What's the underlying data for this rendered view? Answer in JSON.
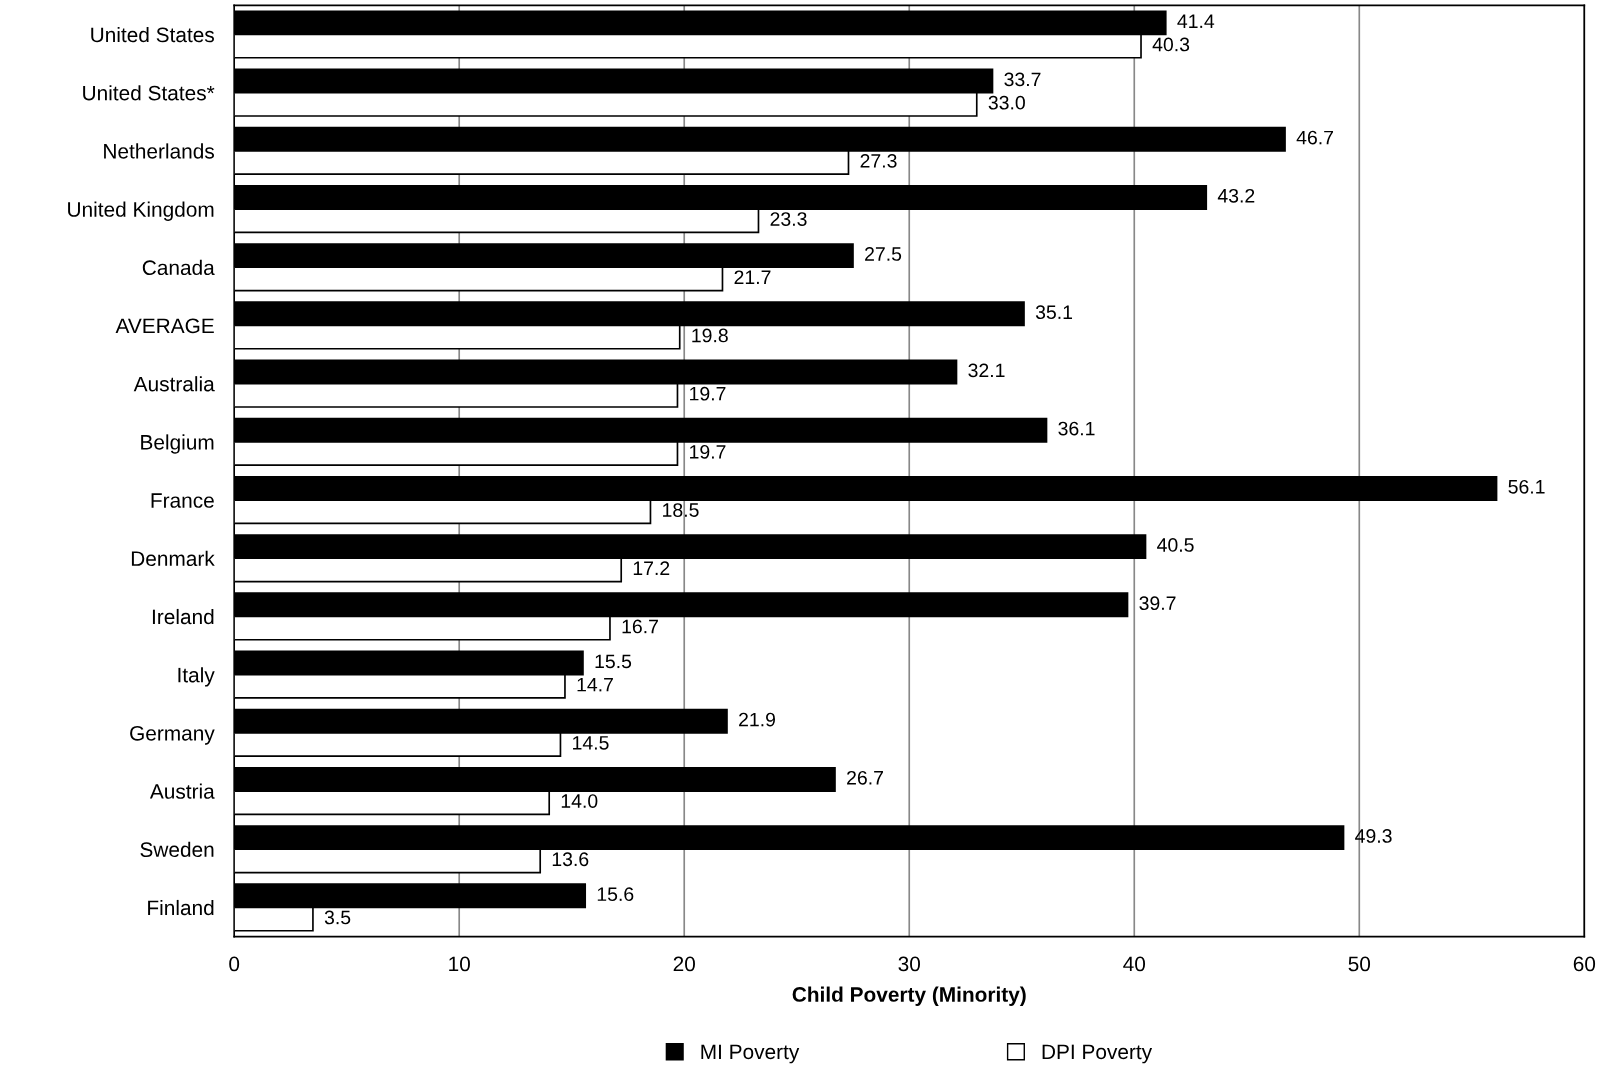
{
  "chart_data": {
    "type": "bar",
    "orientation": "horizontal",
    "xlabel": "Child Poverty (Minority)",
    "categories": [
      "United States",
      "United States*",
      "Netherlands",
      "United Kingdom",
      "Canada",
      "AVERAGE",
      "Australia",
      "Belgium",
      "France",
      "Denmark",
      "Ireland",
      "Italy",
      "Germany",
      "Austria",
      "Sweden",
      "Finland"
    ],
    "series": [
      {
        "name": "MI Poverty",
        "color": "#000000",
        "values": [
          41.4,
          33.7,
          46.7,
          43.2,
          27.5,
          35.1,
          32.1,
          36.1,
          56.1,
          40.5,
          39.7,
          15.5,
          21.9,
          26.7,
          49.3,
          15.6
        ],
        "value_labels": [
          "41.4",
          "33.7",
          "46.7",
          "43.2",
          "27.5",
          "35.1",
          "32.1",
          "36.1",
          "56.1",
          "40.5",
          "39.7",
          "15.5",
          "21.9",
          "26.7",
          "49.3",
          "15.6"
        ]
      },
      {
        "name": "DPI Poverty",
        "color": "#ffffff",
        "values": [
          40.3,
          33,
          27.3,
          23.3,
          21.7,
          19.8,
          19.7,
          19.7,
          18.5,
          17.2,
          16.7,
          14.7,
          14.5,
          14,
          13.6,
          3.5
        ],
        "value_labels": [
          "40.3",
          "33.0",
          "27.3",
          "23.3",
          "21.7",
          "19.8",
          "19.7",
          "19.7",
          "18.5",
          "17.2",
          "16.7",
          "14.7",
          "14.5",
          "14.0",
          "13.6",
          "3.5"
        ]
      }
    ],
    "xlim": [
      0,
      60
    ],
    "xticks": [
      0,
      10,
      20,
      30,
      40,
      50,
      60
    ],
    "grid": "x",
    "legend": "bottom"
  }
}
